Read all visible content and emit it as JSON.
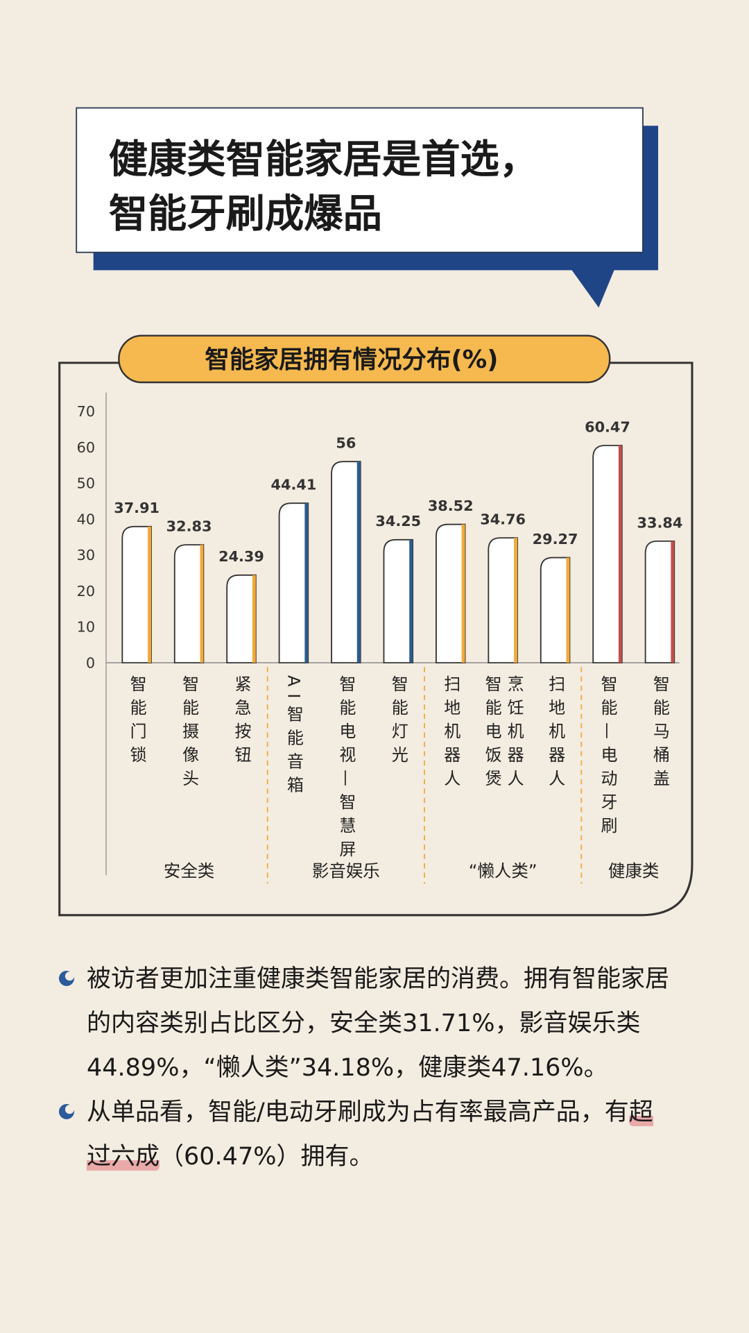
{
  "header": {
    "title_lines": [
      "健康类智能家居是首选，",
      "智能牙刷成爆品"
    ]
  },
  "chart_data": {
    "type": "bar",
    "title": "智能家居拥有情况分布(%)",
    "categories": [
      "智能门锁",
      "智能摄像头",
      "紧急按钮",
      "AI智能音箱",
      "智能电视—智慧屏",
      "智能灯光",
      "扫地机器人",
      "智能电饭煲\n烹饪机器人",
      "扫地机器人",
      "智能—电动牙刷",
      "智能马桶盖"
    ],
    "values": [
      37.91,
      32.83,
      24.39,
      44.41,
      56,
      34.25,
      38.52,
      34.76,
      29.27,
      60.47,
      33.84
    ],
    "colors": [
      "#f2a93b",
      "#f2a93b",
      "#f2a93b",
      "#2b5d8c",
      "#2b5d8c",
      "#2b5d8c",
      "#f2a93b",
      "#f2a93b",
      "#f2a93b",
      "#c0504d",
      "#c0504d"
    ],
    "groups": [
      "安全类",
      "影音娱乐",
      "“懒人类”",
      "健康类"
    ],
    "ylim": [
      0,
      70
    ],
    "yticks": [
      0,
      10,
      20,
      30,
      40,
      50,
      60,
      70
    ],
    "grid": false
  },
  "notes": [
    [
      "被访者更加注重健康类智能家居的消费。拥有智能家居的内容类别占比区分，安全类31.71%，影音娱乐类44.89%，“懒人类”34.18%，健康类47.16%。"
    ],
    [
      "从单品看，智能/电动牙刷成为占有率最高产品，有",
      "超过六成",
      "（60.47%）拥有。"
    ]
  ]
}
